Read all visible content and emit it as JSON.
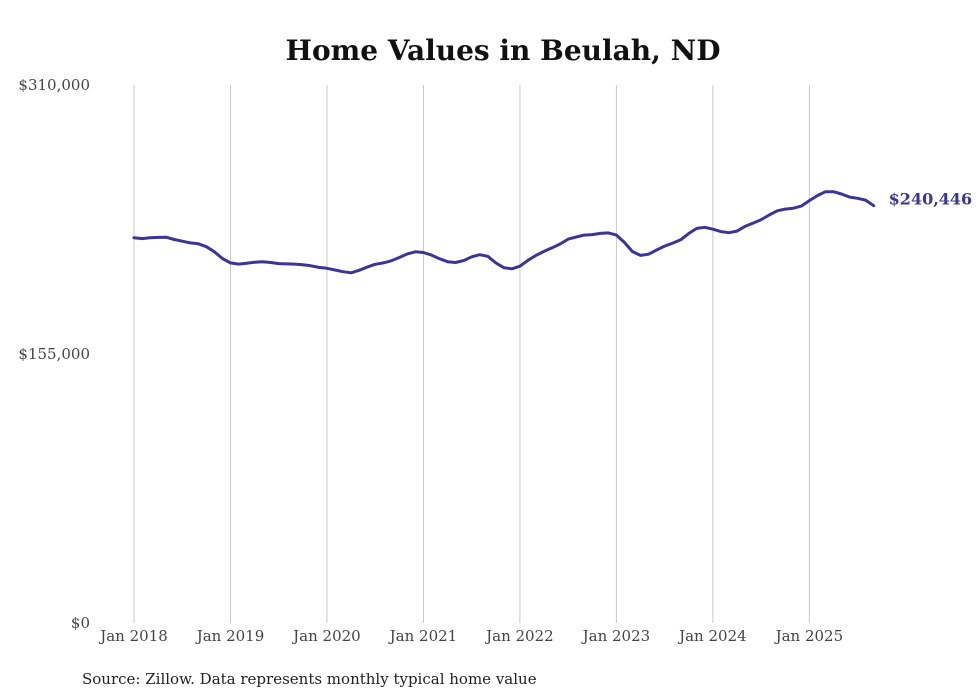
{
  "chart_data": {
    "type": "line",
    "title": "Home Values in Beulah, ND",
    "source": "Source: Zillow. Data represents monthly typical home value",
    "xlabel": "",
    "ylabel": "",
    "ylim": [
      0,
      310000
    ],
    "y_ticks": [
      {
        "value": 0,
        "label": "$0"
      },
      {
        "value": 155000,
        "label": "$155,000"
      },
      {
        "value": 310000,
        "label": "$310,000"
      }
    ],
    "x_ticks": [
      {
        "value": 0,
        "label": "Jan 2018"
      },
      {
        "value": 12,
        "label": "Jan 2019"
      },
      {
        "value": 24,
        "label": "Jan 2020"
      },
      {
        "value": 36,
        "label": "Jan 2021"
      },
      {
        "value": 48,
        "label": "Jan 2022"
      },
      {
        "value": 60,
        "label": "Jan 2023"
      },
      {
        "value": 72,
        "label": "Jan 2024"
      },
      {
        "value": 84,
        "label": "Jan 2025"
      }
    ],
    "xlim": [
      0,
      92
    ],
    "grid": "vertical",
    "end_label": "$240,446",
    "series": [
      {
        "name": "Typical home value",
        "color": "#3a3596",
        "x": [
          0,
          1,
          2,
          3,
          4,
          5,
          6,
          7,
          8,
          9,
          10,
          11,
          12,
          13,
          14,
          15,
          16,
          17,
          18,
          19,
          20,
          21,
          22,
          23,
          24,
          25,
          26,
          27,
          28,
          29,
          30,
          31,
          32,
          33,
          34,
          35,
          36,
          37,
          38,
          39,
          40,
          41,
          42,
          43,
          44,
          45,
          46,
          47,
          48,
          49,
          50,
          51,
          52,
          53,
          54,
          55,
          56,
          57,
          58,
          59,
          60,
          61,
          62,
          63,
          64,
          65,
          66,
          67,
          68,
          69,
          70,
          71,
          72,
          73,
          74,
          75,
          76,
          77,
          78,
          79,
          80,
          81,
          82,
          83,
          84,
          85,
          86,
          87,
          88,
          89,
          90,
          91,
          92
        ],
        "values": [
          222000,
          221500,
          222000,
          222200,
          222300,
          221000,
          220000,
          219000,
          218500,
          216800,
          213900,
          210000,
          207500,
          206800,
          207300,
          207900,
          208200,
          207700,
          207100,
          206900,
          206800,
          206400,
          205800,
          204900,
          204400,
          203400,
          202400,
          201800,
          203200,
          205100,
          206700,
          207500,
          208700,
          210600,
          212700,
          213900,
          213500,
          212000,
          209900,
          208200,
          207700,
          208800,
          211000,
          212200,
          211300,
          207500,
          204700,
          204100,
          205600,
          209000,
          211800,
          214100,
          216200,
          218400,
          221200,
          222400,
          223500,
          223800,
          224500,
          224800,
          223500,
          219300,
          214000,
          211800,
          212500,
          214900,
          217200,
          218900,
          220800,
          224500,
          227400,
          228000,
          226900,
          225500,
          224900,
          225800,
          228500,
          230400,
          232400,
          235100,
          237500,
          238500,
          239000,
          240200,
          243400,
          246300,
          248500,
          248500,
          247200,
          245400,
          244700,
          243700,
          240446
        ]
      }
    ]
  }
}
